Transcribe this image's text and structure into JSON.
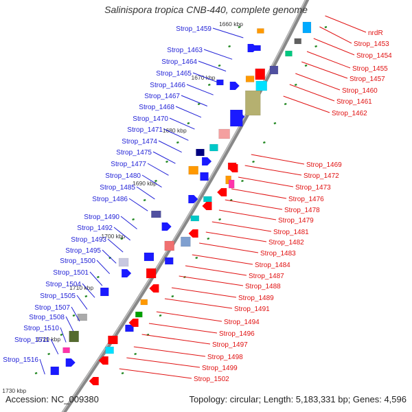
{
  "header": {
    "title": "Salinispora tropica CNB-440, complete genome"
  },
  "footer": {
    "accession": "Accession: NC_009380",
    "summary": "Topology: circular; Length: 5,183,331 bp; Genes: 4,596"
  },
  "colors": {
    "left_labels": "#1f1fd6",
    "right_labels": "#e01010",
    "backbone": "#888888",
    "ticks": "#228822"
  },
  "map": {
    "ticks": [
      "1660 kbp",
      "1670 kbp",
      "1680 kbp",
      "1690 kbp",
      "1700 kbp",
      "1710 kbp",
      "1720 kbp",
      "1730 kbp"
    ],
    "left_genes": [
      "Strop_1459",
      "Strop_1463",
      "Strop_1464",
      "Strop_1465",
      "Strop_1466",
      "Strop_1467",
      "Strop_1468",
      "Strop_1470",
      "Strop_1471",
      "Strop_1474",
      "Strop_1475",
      "Strop_1477",
      "Strop_1480",
      "Strop_1485",
      "Strop_1486",
      "Strop_1490",
      "Strop_1492",
      "Strop_1493",
      "Strop_1495",
      "Strop_1500",
      "Strop_1501",
      "Strop_1504",
      "Strop_1505",
      "Strop_1507",
      "Strop_1508",
      "Strop_1510",
      "Strop_1511",
      "Strop_1516"
    ],
    "right_genes": [
      "nrdR",
      "Strop_1453",
      "Strop_1454",
      "Strop_1455",
      "Strop_1457",
      "Strop_1460",
      "Strop_1461",
      "Strop_1462",
      "Strop_1469",
      "Strop_1472",
      "Strop_1473",
      "Strop_1476",
      "Strop_1478",
      "Strop_1479",
      "Strop_1481",
      "Strop_1482",
      "Strop_1483",
      "Strop_1484",
      "Strop_1487",
      "Strop_1488",
      "Strop_1489",
      "Strop_1491",
      "Strop_1494",
      "Strop_1496",
      "Strop_1497",
      "Strop_1498",
      "Strop_1499",
      "Strop_1502"
    ]
  }
}
